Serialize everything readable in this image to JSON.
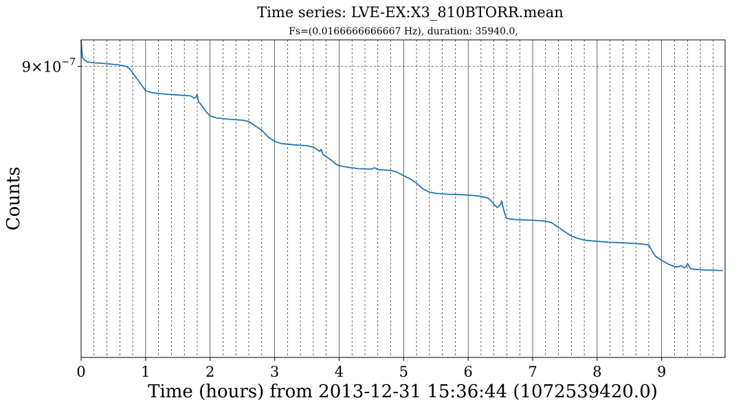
{
  "chart_data": {
    "type": "line",
    "title": "Time series: LVE-EX:X3_810BTORR.mean",
    "subtitle": "Fs=(0.0166666666667 Hz), duration: 35940.0,",
    "xlabel": "Time (hours) from 2013-12-31 15:36:44 (1072539420.0)",
    "ylabel": "Counts",
    "xlim": [
      0,
      9.983
    ],
    "ylim": [
      8.34e-07,
      9.06e-07
    ],
    "x_ticks": [
      0,
      1,
      2,
      3,
      4,
      5,
      6,
      7,
      8,
      9
    ],
    "x_tick_labels": [
      "0",
      "1",
      "2",
      "3",
      "4",
      "5",
      "6",
      "7",
      "8",
      "9"
    ],
    "y_ticks": [
      9e-07
    ],
    "y_tick_label": "9×10",
    "y_tick_exponent": "−7",
    "grid": "on (major solid, minor dashed)",
    "line_color": "#1f77b4",
    "series": [
      {
        "x": [
          0.0,
          0.02,
          0.05,
          0.1,
          0.2,
          0.4,
          0.6,
          0.7,
          0.75,
          0.8,
          0.85,
          0.9,
          0.95,
          1.0,
          1.1,
          1.3,
          1.5,
          1.7,
          1.75,
          1.78,
          1.8,
          1.82,
          1.85,
          1.9,
          1.95,
          2.0,
          2.1,
          2.3,
          2.5,
          2.6,
          2.7,
          2.8,
          2.9,
          3.0,
          3.1,
          3.3,
          3.5,
          3.6,
          3.7,
          3.72,
          3.75,
          3.8,
          3.9,
          3.95,
          4.0,
          4.1,
          4.3,
          4.5,
          4.55,
          4.6,
          4.8,
          4.9,
          5.0,
          5.1,
          5.2,
          5.3,
          5.4,
          5.5,
          5.7,
          5.9,
          6.0,
          6.1,
          6.2,
          6.3,
          6.35,
          6.4,
          6.45,
          6.5,
          6.52,
          6.55,
          6.58,
          6.6,
          6.7,
          6.8,
          7.0,
          7.2,
          7.3,
          7.4,
          7.5,
          7.6,
          7.7,
          7.8,
          8.0,
          8.2,
          8.4,
          8.6,
          8.7,
          8.8,
          8.85,
          8.9,
          9.0,
          9.1,
          9.2,
          9.25,
          9.3,
          9.35,
          9.38,
          9.4,
          9.45,
          9.5,
          9.6,
          9.7,
          9.8,
          9.9,
          9.95
        ],
        "y": [
          9.06e-07,
          9.02e-07,
          9.015e-07,
          9.01e-07,
          9.008e-07,
          9.006e-07,
          9.003e-07,
          9e-07,
          8.995e-07,
          8.985e-07,
          8.975e-07,
          8.965e-07,
          8.955e-07,
          8.945e-07,
          8.94e-07,
          8.937e-07,
          8.935e-07,
          8.933e-07,
          8.928e-07,
          8.93e-07,
          8.937e-07,
          8.92e-07,
          8.915e-07,
          8.905e-07,
          8.895e-07,
          8.888e-07,
          8.883e-07,
          8.88e-07,
          8.878e-07,
          8.875e-07,
          8.865e-07,
          8.855e-07,
          8.84e-07,
          8.83e-07,
          8.825e-07,
          8.822e-07,
          8.82e-07,
          8.817e-07,
          8.807e-07,
          8.812e-07,
          8.8e-07,
          8.795e-07,
          8.785e-07,
          8.778e-07,
          8.775e-07,
          8.772e-07,
          8.768e-07,
          8.767e-07,
          8.77e-07,
          8.766e-07,
          8.764e-07,
          8.76e-07,
          8.752e-07,
          8.745e-07,
          8.735e-07,
          8.722e-07,
          8.715e-07,
          8.712e-07,
          8.71e-07,
          8.709e-07,
          8.708e-07,
          8.707e-07,
          8.705e-07,
          8.702e-07,
          8.696e-07,
          8.687e-07,
          8.68e-07,
          8.686e-07,
          8.695e-07,
          8.675e-07,
          8.66e-07,
          8.655e-07,
          8.653e-07,
          8.652e-07,
          8.651e-07,
          8.649e-07,
          8.645e-07,
          8.635e-07,
          8.625e-07,
          8.615e-07,
          8.61e-07,
          8.606e-07,
          8.603e-07,
          8.601e-07,
          8.6e-07,
          8.598e-07,
          8.597e-07,
          8.595e-07,
          8.582e-07,
          8.57e-07,
          8.56e-07,
          8.552e-07,
          8.546e-07,
          8.545e-07,
          8.548e-07,
          8.543e-07,
          8.545e-07,
          8.553e-07,
          8.541e-07,
          8.54e-07,
          8.539e-07,
          8.538e-07,
          8.538e-07,
          8.537e-07,
          8.537e-07
        ]
      }
    ]
  }
}
